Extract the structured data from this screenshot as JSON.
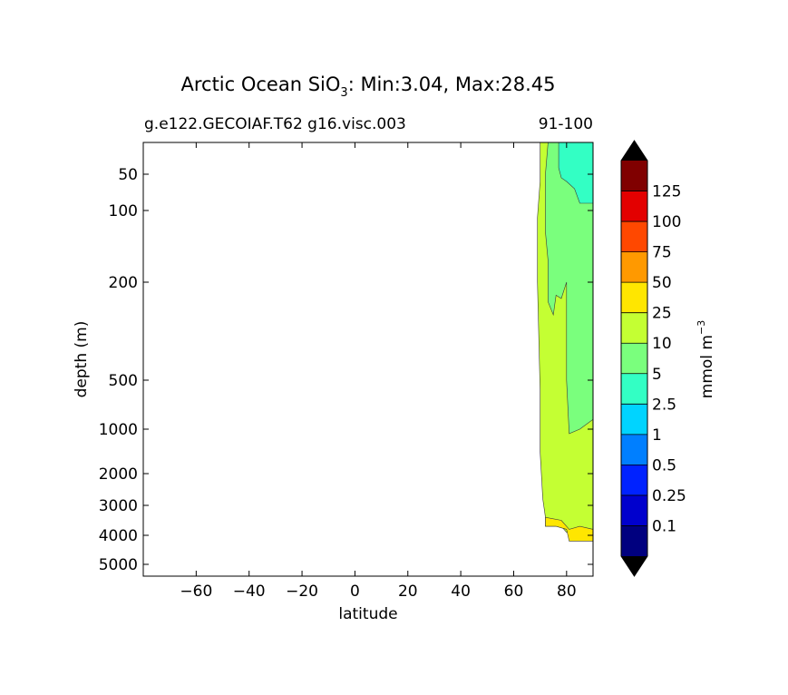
{
  "chart_data": {
    "type": "contour",
    "title": {
      "prefix": "Arctic Ocean SiO",
      "subscript": "3",
      "suffix": ": Min:3.04, Max:28.45"
    },
    "subtitle_left": "g.e122.GECOIAF.T62 g16.visc.003",
    "subtitle_right": "91-100",
    "xlabel": "latitude",
    "ylabel": "depth (m)",
    "xlim": [
      -80,
      90
    ],
    "x_ticks": [
      -60,
      -40,
      -20,
      0,
      20,
      40,
      60,
      80
    ],
    "x_tick_labels": [
      "−60",
      "−40",
      "−20",
      "0",
      "20",
      "40",
      "60",
      "80"
    ],
    "y_ticks": [
      50,
      100,
      200,
      500,
      1000,
      2000,
      3000,
      4000,
      5000
    ],
    "y_tick_labels": [
      "50",
      "100",
      "200",
      "500",
      "1000",
      "2000",
      "3000",
      "4000",
      "5000"
    ],
    "colorbar": {
      "label": "mmol m",
      "label_superscript": "−3",
      "levels": [
        0.1,
        0.25,
        0.5,
        1,
        2.5,
        5,
        10,
        25,
        50,
        75,
        100,
        125
      ],
      "level_labels": [
        "0.1",
        "0.25",
        "0.5",
        "1",
        "2.5",
        "5",
        "10",
        "25",
        "50",
        "75",
        "100",
        "125"
      ],
      "colors": [
        "#00007f",
        "#0000cd",
        "#0022ff",
        "#007fff",
        "#00d4ff",
        "#33ffc4",
        "#7aff7d",
        "#c4ff33",
        "#ffe600",
        "#ff9900",
        "#ff4800",
        "#e30000",
        "#800000"
      ],
      "extend_colors": {
        "under": "#000000",
        "over": "#000000"
      }
    },
    "regions": [
      {
        "band": "2.5-5",
        "color": "#33ffc4",
        "lat_range": [
          77,
          90
        ],
        "depth_range": [
          10,
          90
        ]
      },
      {
        "band": "5-10",
        "color": "#7aff7d",
        "lat_range": [
          69,
          90
        ],
        "depth_range": [
          30,
          1100
        ]
      },
      {
        "band": "10-25",
        "color": "#c4ff33",
        "lat_range": [
          66,
          90
        ],
        "depth_range": [
          10,
          3700
        ]
      },
      {
        "band": "25-50",
        "color": "#ffe600",
        "lat_range": [
          72,
          90
        ],
        "depth_range": [
          3500,
          4200
        ]
      }
    ]
  }
}
